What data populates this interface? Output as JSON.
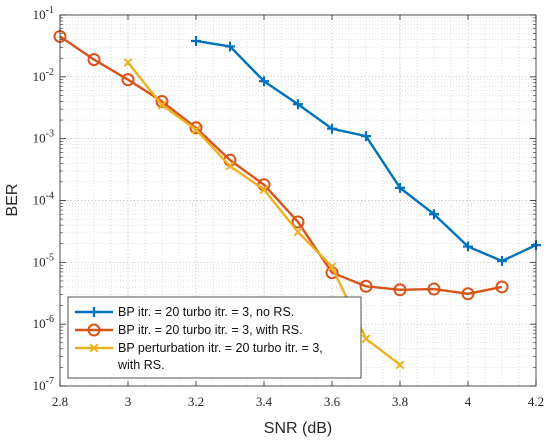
{
  "chart_data": {
    "type": "line",
    "xlabel": "SNR (dB)",
    "ylabel": "BER",
    "xlim": [
      2.8,
      4.2
    ],
    "ylim": [
      1e-07,
      0.1
    ],
    "yscale": "log",
    "grid": true,
    "minor_grid": true,
    "legend_position": "bottom-left",
    "x_ticks": [
      "2.8",
      "3",
      "3.2",
      "3.4",
      "3.6",
      "3.8",
      "4",
      "4.2"
    ],
    "y_tick_exponents": [
      "-7",
      "-6",
      "-5",
      "-4",
      "-3",
      "-2",
      "-1"
    ],
    "y_tick_base": "10",
    "series": [
      {
        "name": "BP itr. = 20 turbo itr. = 3, no RS.",
        "color": "#0072BD",
        "marker": "plus",
        "x": [
          3.2,
          3.3,
          3.4,
          3.5,
          3.6,
          3.7,
          3.8,
          3.9,
          4.0,
          4.1,
          4.2
        ],
        "y": [
          0.038,
          0.031,
          0.0085,
          0.0036,
          0.00145,
          0.0011,
          0.00016,
          6e-05,
          1.8e-05,
          1.05e-05,
          1.9e-05
        ]
      },
      {
        "name": "BP itr. = 20 turbo itr. = 3, with RS.",
        "color": "#D95319",
        "marker": "circle",
        "x": [
          2.8,
          2.9,
          3.0,
          3.1,
          3.2,
          3.3,
          3.4,
          3.5,
          3.6,
          3.7,
          3.8,
          3.9,
          4.0,
          4.1
        ],
        "y": [
          0.045,
          0.019,
          0.009,
          0.004,
          0.0015,
          0.00045,
          0.00018,
          4.5e-05,
          6.8e-06,
          4.1e-06,
          3.6e-06,
          3.7e-06,
          3.1e-06,
          4e-06
        ]
      },
      {
        "name": "BP perturbation itr. = 20 turbo itr. = 3,",
        "name_line2": "with RS.",
        "color": "#EDB120",
        "marker": "x",
        "x": [
          3.0,
          3.1,
          3.2,
          3.3,
          3.4,
          3.5,
          3.6,
          3.7,
          3.8
        ],
        "y": [
          0.017,
          0.0035,
          0.0014,
          0.00036,
          0.00015,
          3.1e-05,
          8.5e-06,
          5.8e-07,
          2.2e-07
        ]
      }
    ]
  }
}
